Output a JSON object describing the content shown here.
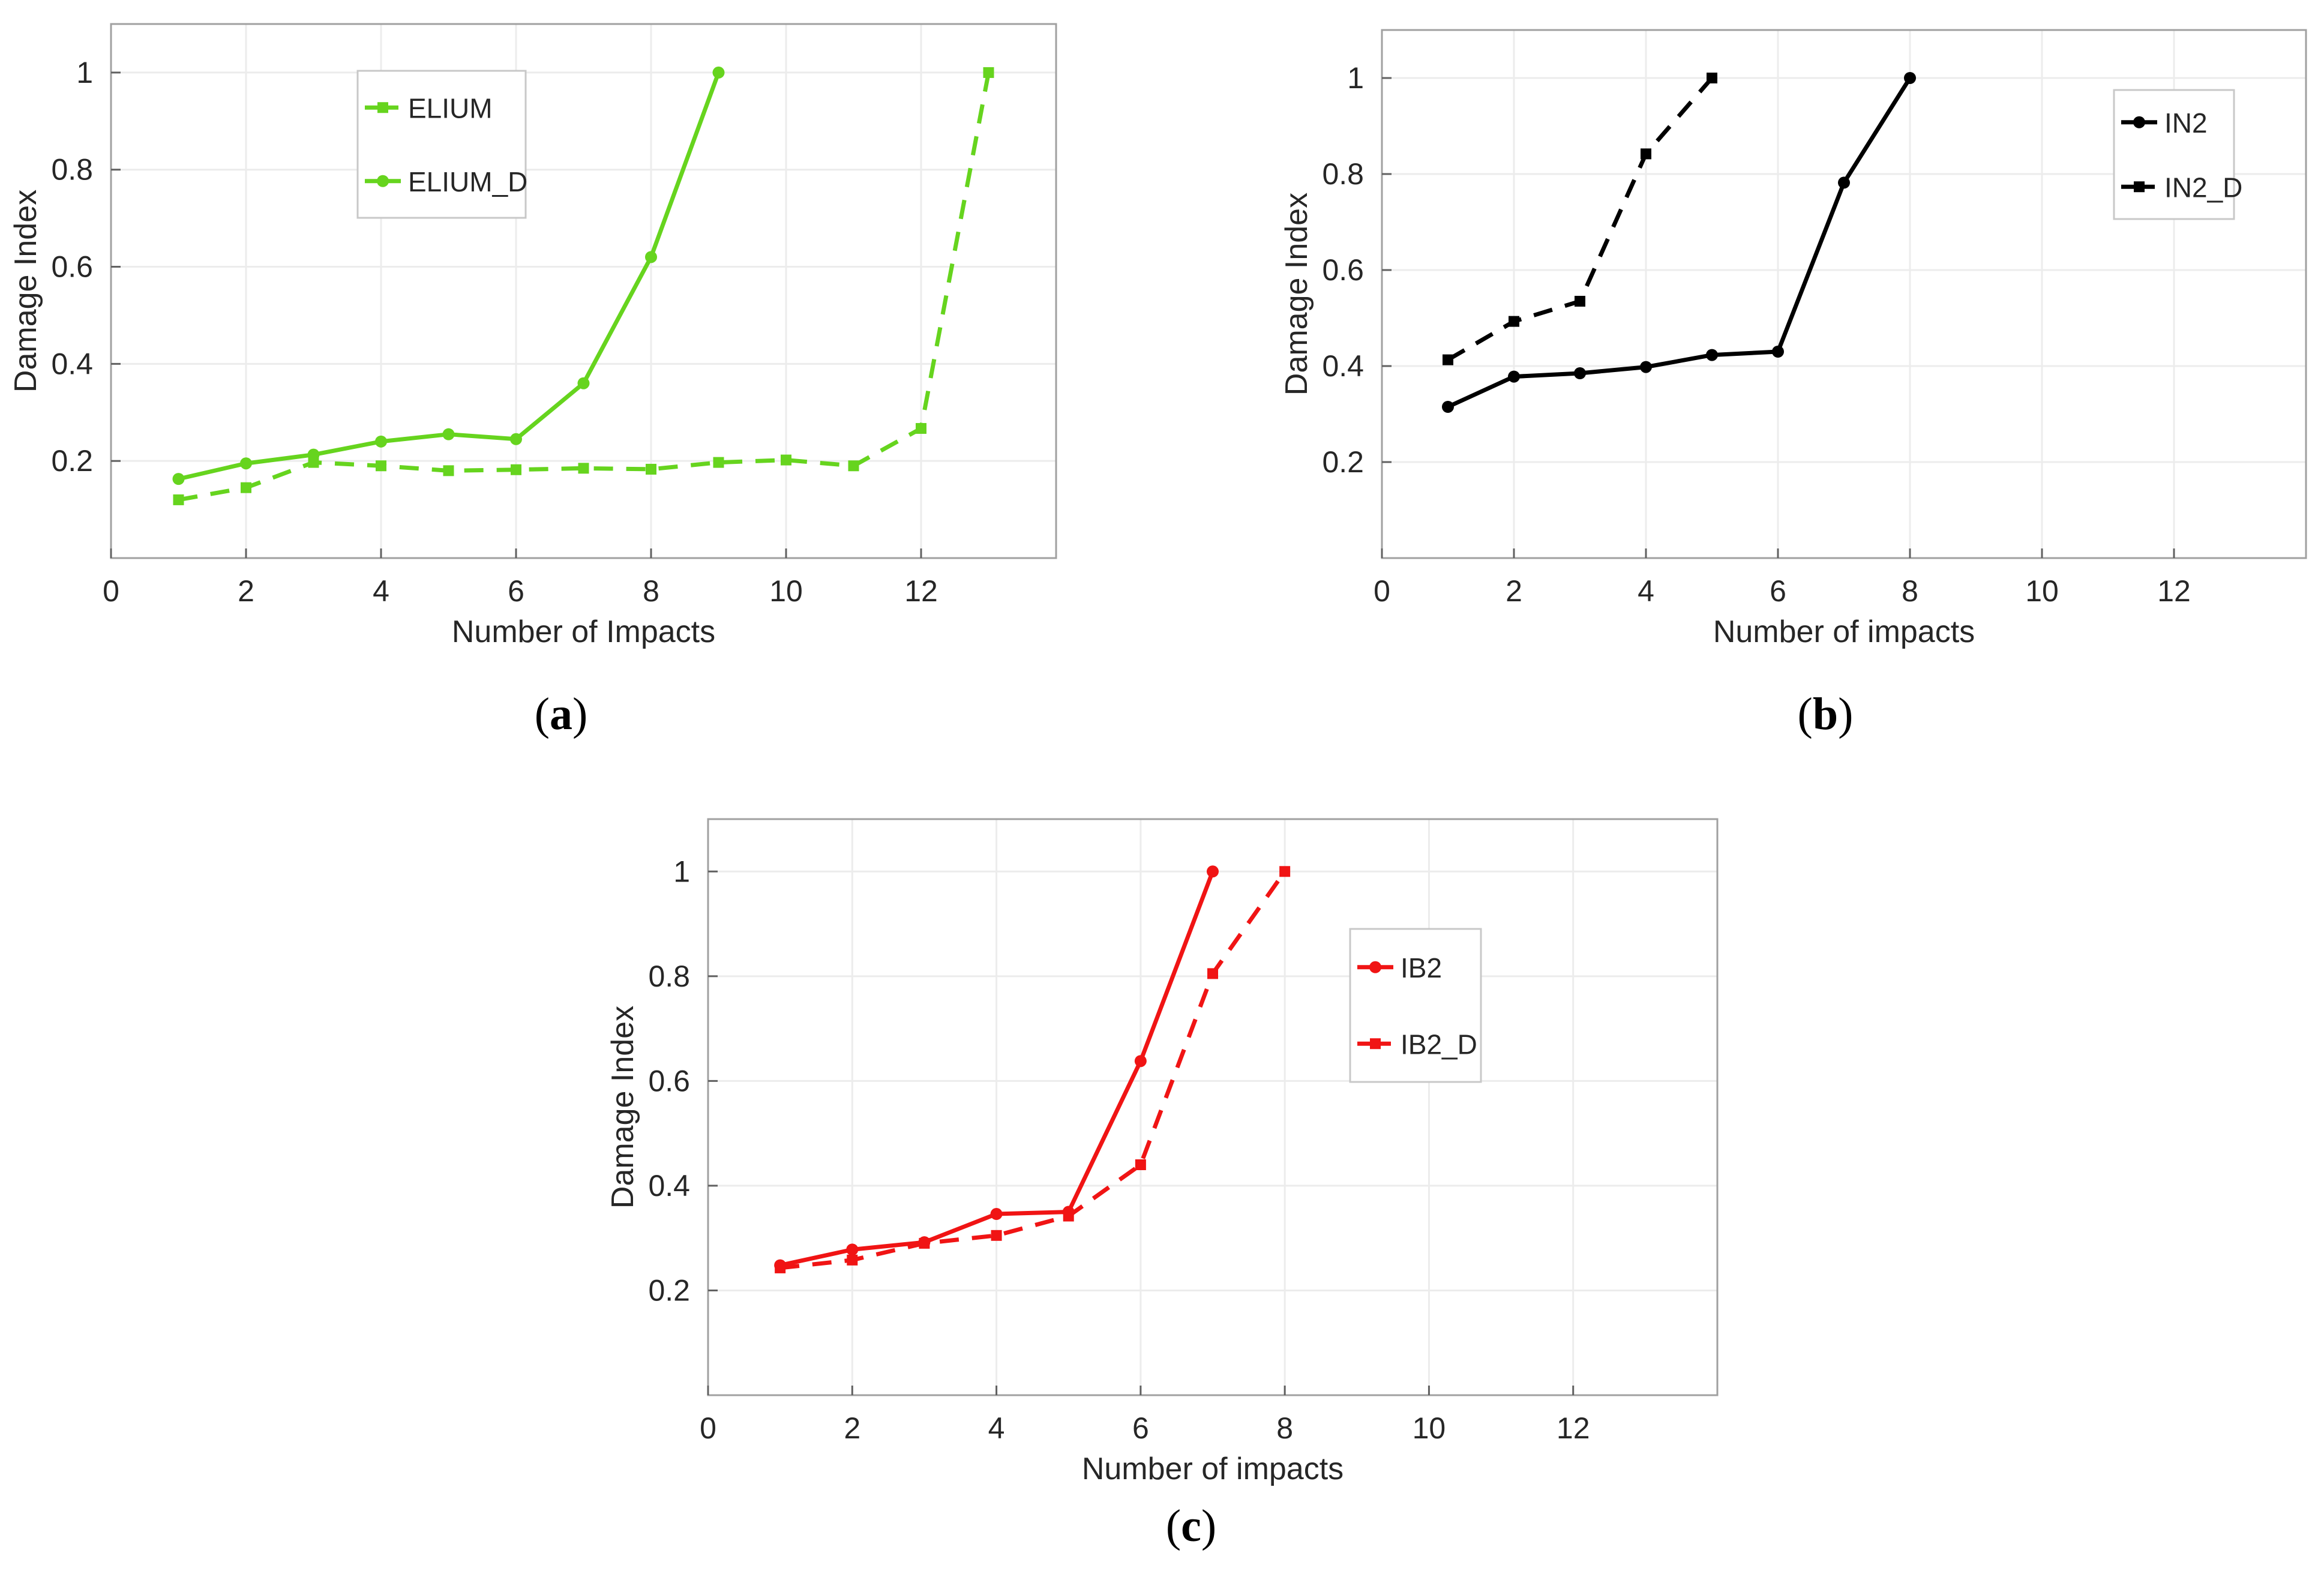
{
  "chart_data": [
    {
      "panel": "(a)",
      "type": "line",
      "title": "",
      "xlabel": "Number of Impacts",
      "ylabel": "Damage Index",
      "xlim": [
        0,
        14
      ],
      "ylim": [
        0,
        1.1
      ],
      "xticks": [
        0,
        2,
        4,
        6,
        8,
        10,
        12
      ],
      "yticks": [
        0.2,
        0.4,
        0.6,
        0.8,
        1
      ],
      "grid": true,
      "legend_position": "top-center",
      "series": [
        {
          "name": "ELIUM",
          "color": "#66d41e",
          "line_style": "dashed",
          "marker": "square",
          "x": [
            1,
            2,
            3,
            4,
            5,
            6,
            7,
            8,
            9,
            10,
            11,
            12,
            13
          ],
          "values": [
            0.12,
            0.145,
            0.197,
            0.19,
            0.18,
            0.182,
            0.185,
            0.183,
            0.197,
            0.202,
            0.19,
            0.267,
            1.0
          ]
        },
        {
          "name": "ELIUM_D",
          "color": "#66d41e",
          "line_style": "solid",
          "marker": "circle",
          "x": [
            1,
            2,
            3,
            4,
            5,
            6,
            7,
            8,
            9
          ],
          "values": [
            0.163,
            0.195,
            0.213,
            0.24,
            0.255,
            0.245,
            0.36,
            0.62,
            1.0
          ]
        }
      ]
    },
    {
      "panel": "(b)",
      "type": "line",
      "title": "",
      "xlabel": "Number of impacts",
      "ylabel": "Damage Index",
      "xlim": [
        0,
        14
      ],
      "ylim": [
        0,
        1.1
      ],
      "xticks": [
        0,
        2,
        4,
        6,
        8,
        10,
        12
      ],
      "yticks": [
        0.2,
        0.4,
        0.6,
        0.8,
        1
      ],
      "grid": true,
      "legend_position": "top-right",
      "series": [
        {
          "name": "IN2",
          "color": "#000000",
          "line_style": "solid",
          "marker": "circle",
          "x": [
            1,
            2,
            3,
            4,
            5,
            6,
            7,
            8
          ],
          "values": [
            0.315,
            0.378,
            0.385,
            0.398,
            0.423,
            0.43,
            0.782,
            1.0
          ]
        },
        {
          "name": "IN2_D",
          "color": "#000000",
          "line_style": "dashed",
          "marker": "square",
          "x": [
            1,
            2,
            3,
            4,
            5
          ],
          "values": [
            0.413,
            0.493,
            0.535,
            0.842,
            1.0
          ]
        }
      ]
    },
    {
      "panel": "(c)",
      "type": "line",
      "title": "",
      "xlabel": "Number of impacts",
      "ylabel": "Damage Index",
      "xlim": [
        0,
        14
      ],
      "ylim": [
        0,
        1.1
      ],
      "xticks": [
        0,
        2,
        4,
        6,
        8,
        10,
        12
      ],
      "yticks": [
        0.2,
        0.4,
        0.6,
        0.8,
        1
      ],
      "grid": true,
      "legend_position": "top-right",
      "series": [
        {
          "name": "IB2",
          "color": "#f01414",
          "line_style": "solid",
          "marker": "circle",
          "x": [
            1,
            2,
            3,
            4,
            5,
            6,
            7
          ],
          "values": [
            0.248,
            0.278,
            0.292,
            0.346,
            0.35,
            0.638,
            1.0
          ]
        },
        {
          "name": "IB2_D",
          "color": "#f01414",
          "line_style": "dashed",
          "marker": "square",
          "x": [
            1,
            2,
            3,
            4,
            5,
            6,
            7,
            8
          ],
          "values": [
            0.243,
            0.258,
            0.29,
            0.305,
            0.342,
            0.44,
            0.805,
            1.0
          ]
        }
      ]
    }
  ]
}
